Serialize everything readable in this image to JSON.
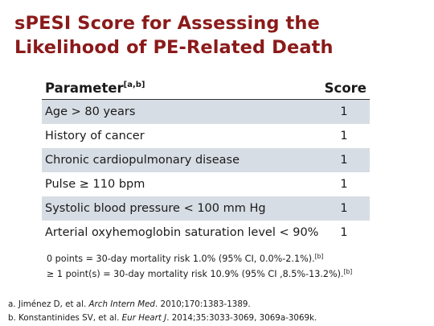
{
  "title": {
    "line1": "sPESI Score for Assessing the",
    "line2": "Likelihood of PE-Related Death"
  },
  "table": {
    "header": {
      "parameter": "Parameter",
      "parameter_sup": "[a,b]",
      "score": "Score"
    },
    "rows": [
      {
        "parameter": "Age > 80 years",
        "score": "1"
      },
      {
        "parameter": "History of cancer",
        "score": "1"
      },
      {
        "parameter": "Chronic cardiopulmonary disease",
        "score": "1"
      },
      {
        "parameter": "Pulse ≥ 110 bpm",
        "score": "1"
      },
      {
        "parameter": "Systolic blood pressure < 100 mm Hg",
        "score": "1"
      },
      {
        "parameter": "Arterial oxyhemoglobin saturation level < 90%",
        "score": "1"
      }
    ]
  },
  "notes": [
    {
      "text": "0 points = 30-day mortality risk 1.0% (95% CI, 0.0%-2.1%).",
      "sup": "[b]"
    },
    {
      "text": "≥ 1 point(s) = 30-day mortality risk 10.9% (95% CI ,8.5%-13.2%).",
      "sup": "[b]"
    }
  ],
  "references": [
    {
      "prefix": "a. Jiménez D, et al. ",
      "journal": "Arch Intern Med",
      "suffix": ". 2010;170:1383-1389."
    },
    {
      "prefix": "b. Konstantinides SV, et al. ",
      "journal": "Eur Heart J",
      "suffix": ". 2014;35:3033-3069, 3069a-3069k."
    }
  ]
}
